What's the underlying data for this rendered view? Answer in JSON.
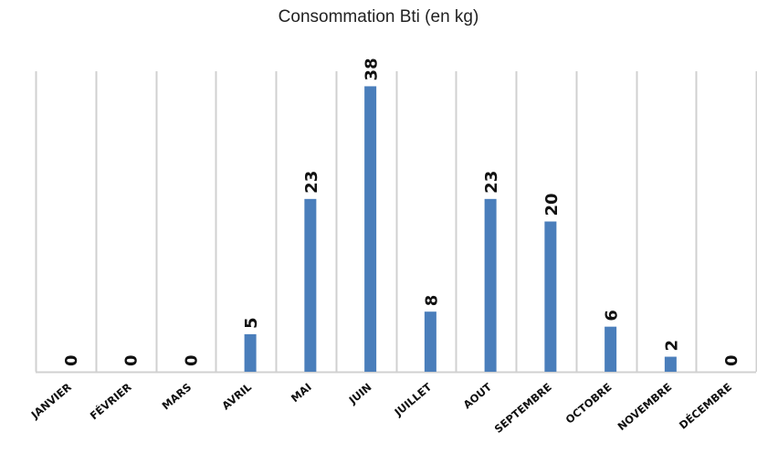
{
  "chart_data": {
    "type": "bar",
    "title": "Consommation Bti (en kg)",
    "categories": [
      "JANVIER",
      "FÉVRIER",
      "MARS",
      "AVRIL",
      "MAI",
      "JUIN",
      "JUILLET",
      "AOUT",
      "SEPTEMBRE",
      "OCTOBRE",
      "NOVEMBRE",
      "DÉCEMBRE"
    ],
    "values": [
      0,
      0,
      0,
      5,
      23,
      38,
      8,
      23,
      20,
      6,
      2,
      0
    ],
    "ylim": [
      0,
      40
    ],
    "grid": "vertical",
    "data_labels": true,
    "legend": "none",
    "bar_color": "#4a7ebb",
    "grid_color": "#d0d0d0"
  }
}
